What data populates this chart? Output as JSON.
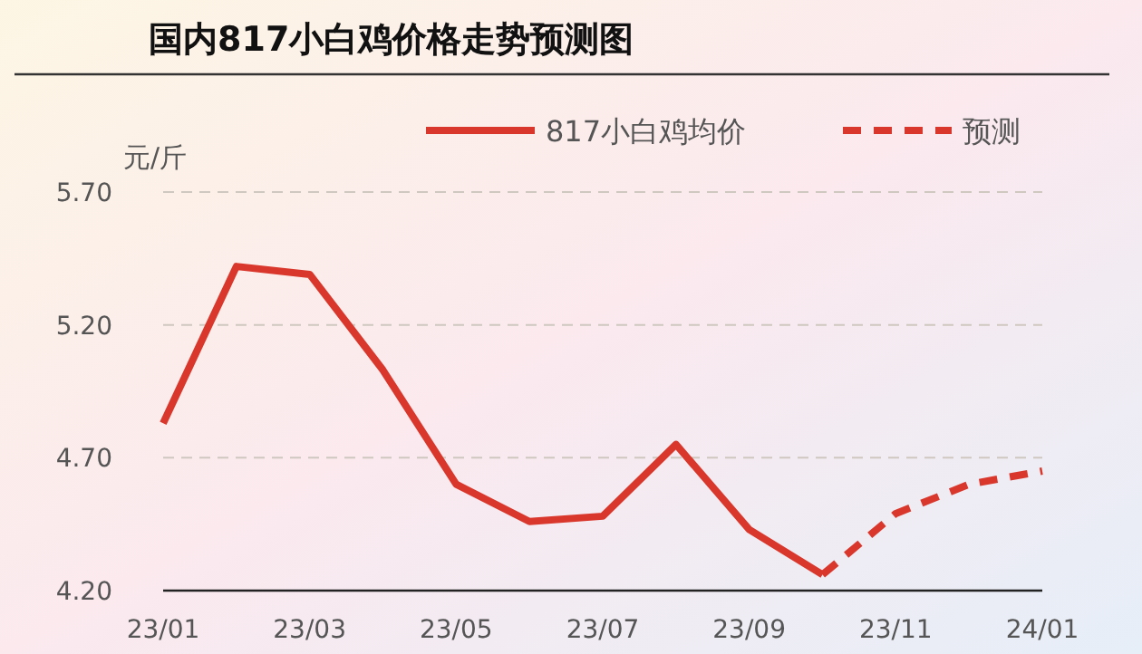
{
  "chart_data": {
    "type": "line",
    "title": "国内817小白鸡价格走势预测图",
    "ylabel": "元/斤",
    "categories": [
      "23/01",
      null,
      "23/03",
      null,
      "23/05",
      null,
      "23/07",
      null,
      "23/09",
      null,
      "23/11",
      null,
      "24/01"
    ],
    "series": [
      {
        "name": "817小白鸡均价",
        "color": "#d9372b",
        "line_style": "solid",
        "values": [
          4.83,
          5.42,
          5.39,
          5.03,
          4.6,
          4.46,
          4.48,
          4.75,
          4.43,
          4.26,
          null,
          null,
          null
        ]
      },
      {
        "name": "预测",
        "color": "#d9372b",
        "line_style": "dashed",
        "values": [
          null,
          null,
          null,
          null,
          null,
          null,
          null,
          null,
          null,
          4.26,
          4.49,
          4.6,
          4.65
        ]
      }
    ],
    "ylim": [
      4.2,
      5.7
    ],
    "yticks": [
      {
        "value": 4.2,
        "label": "4.20"
      },
      {
        "value": 4.7,
        "label": "4.70"
      },
      {
        "value": 5.2,
        "label": "5.20"
      },
      {
        "value": 5.7,
        "label": "5.70"
      }
    ],
    "grid": "y",
    "legend": "top right",
    "marker": "none"
  }
}
